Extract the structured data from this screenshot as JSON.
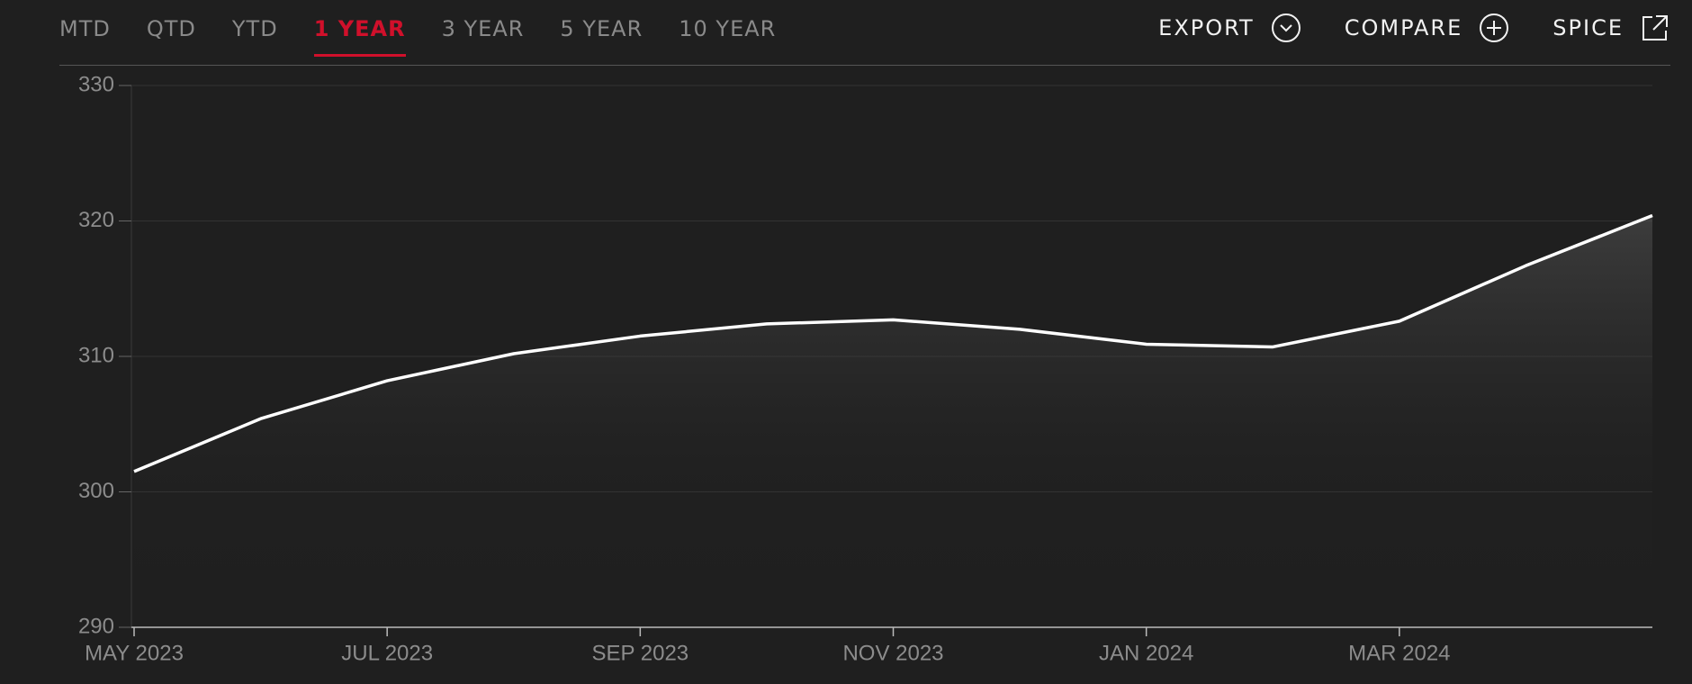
{
  "tabs": {
    "items": [
      "MTD",
      "QTD",
      "YTD",
      "1 YEAR",
      "3 YEAR",
      "5 YEAR",
      "10 YEAR"
    ],
    "active": 3
  },
  "actions": [
    "EXPORT",
    "COMPARE",
    "SPICE"
  ],
  "chart_data": {
    "type": "area",
    "categories": [
      "MAY 2023",
      null,
      "JUL 2023",
      null,
      "SEP 2023",
      null,
      "NOV 2023",
      null,
      "JAN 2024",
      null,
      "MAR 2024",
      null,
      null
    ],
    "values": [
      301.5,
      305.4,
      308.2,
      310.2,
      311.5,
      312.4,
      312.7,
      312.0,
      310.9,
      310.7,
      312.6,
      316.7,
      320.4
    ],
    "color": "#ffffff",
    "ylim": [
      290,
      330
    ],
    "yticks": [
      290,
      300,
      310,
      320,
      330
    ],
    "grid": true
  }
}
